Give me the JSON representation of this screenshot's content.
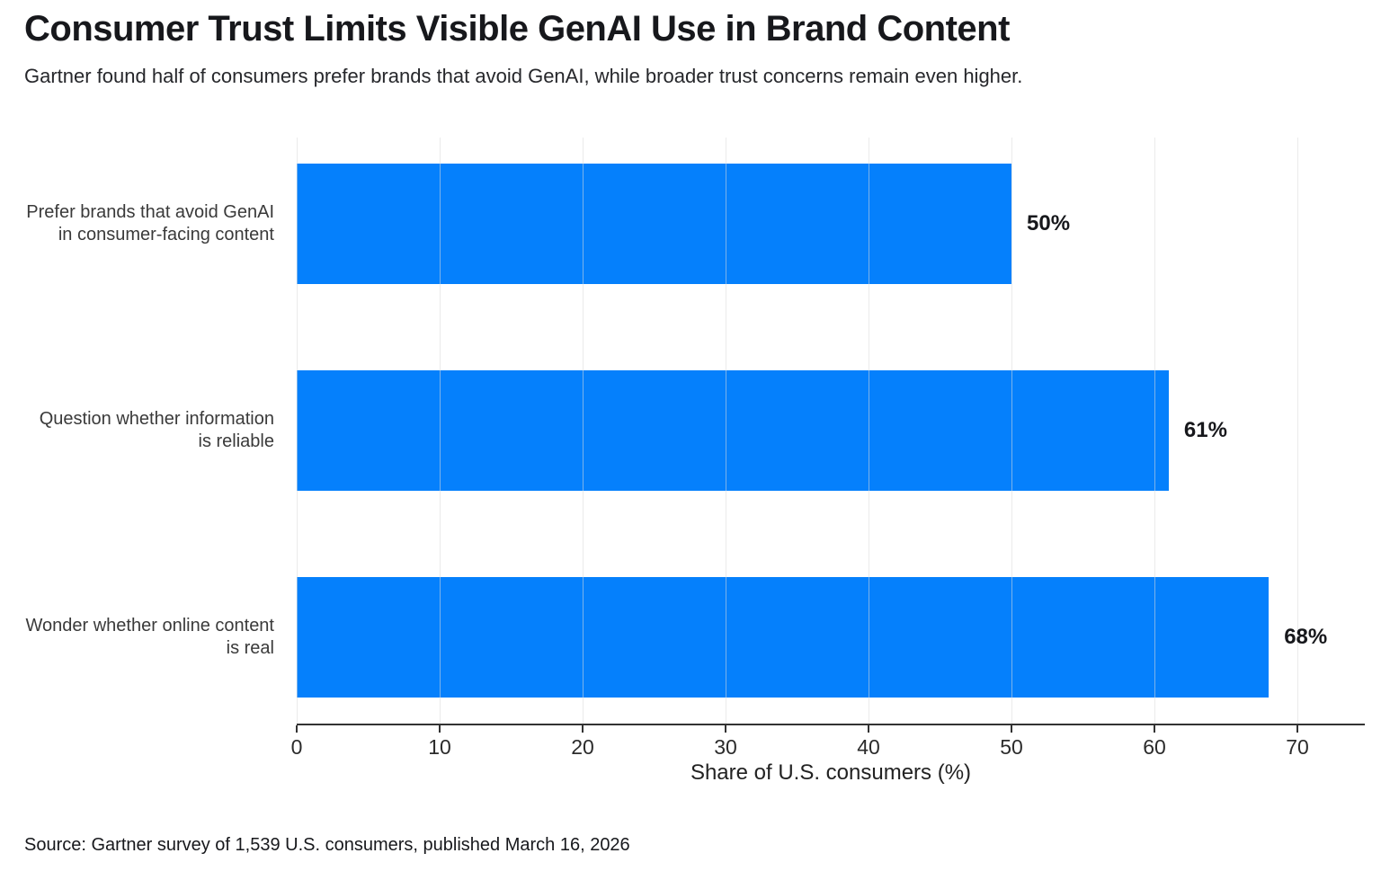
{
  "header": {
    "title": "Consumer Trust Limits Visible GenAI Use in Brand Content",
    "subtitle": "Gartner found half of consumers prefer brands that avoid GenAI, while broader trust concerns remain even higher."
  },
  "chart_data": {
    "type": "bar",
    "orientation": "horizontal",
    "title": "Consumer Trust Limits Visible GenAI Use in Brand Content",
    "subtitle": "Gartner found half of consumers prefer brands that avoid GenAI, while broader trust concerns remain even higher.",
    "xlabel": "Share of U.S. consumers (%)",
    "ylabel": "",
    "xlim": [
      0,
      75
    ],
    "xticks": [
      0,
      10,
      20,
      30,
      40,
      50,
      60,
      70
    ],
    "grid": "vertical",
    "legend": "none",
    "bar_color": "#0580FC",
    "categories": [
      "Prefer brands that avoid GenAI in consumer-facing content",
      "Question whether information is reliable",
      "Wonder whether online content is real"
    ],
    "values": [
      50,
      61,
      68
    ],
    "rows": [
      {
        "lines": [
          "Prefer brands that avoid GenAI",
          "in consumer-facing content"
        ],
        "value": 50,
        "value_label": "50%"
      },
      {
        "lines": [
          "Question whether information",
          "is reliable"
        ],
        "value": 61,
        "value_label": "61%"
      },
      {
        "lines": [
          "Wonder whether online content",
          "is real"
        ],
        "value": 68,
        "value_label": "68%"
      }
    ]
  },
  "footer": {
    "source": "Source: Gartner survey of 1,539 U.S. consumers, published March 16, 2026"
  }
}
